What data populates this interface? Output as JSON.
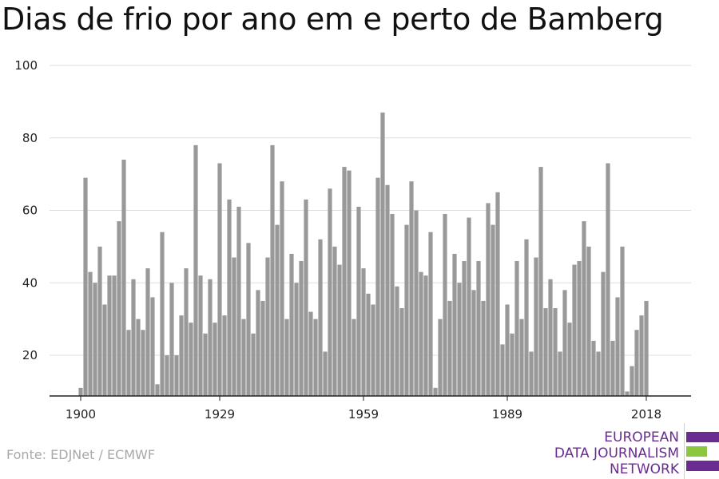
{
  "title": "Dias de frio por ano em e perto de Bamberg",
  "source": "Fonte: EDJNet / ECMWF",
  "logo": {
    "lines": [
      "EUROPEAN",
      "DATA JOURNALISM",
      "NETWORK"
    ],
    "colors": {
      "purple": "#6a2c91",
      "green": "#8dc63f"
    }
  },
  "colors": {
    "bar": "#999999",
    "grid": "#dddddd",
    "axis": "#222222"
  },
  "chart_data": {
    "type": "bar",
    "x_start": 1900,
    "x_end": 2018,
    "xticks": [
      1900,
      1929,
      1959,
      1989,
      2018
    ],
    "yticks": [
      20,
      40,
      60,
      80,
      100
    ],
    "ylim": [
      8,
      100
    ],
    "grid": true,
    "values": [
      11,
      69,
      43,
      40,
      50,
      34,
      42,
      42,
      57,
      74,
      27,
      41,
      30,
      27,
      44,
      36,
      12,
      54,
      20,
      40,
      20,
      31,
      44,
      29,
      78,
      42,
      26,
      41,
      29,
      73,
      31,
      63,
      47,
      61,
      30,
      51,
      26,
      38,
      35,
      47,
      78,
      56,
      68,
      30,
      48,
      40,
      46,
      63,
      32,
      30,
      52,
      21,
      66,
      50,
      45,
      72,
      71,
      30,
      61,
      44,
      37,
      34,
      69,
      87,
      67,
      59,
      39,
      33,
      56,
      68,
      60,
      43,
      42,
      54,
      11,
      30,
      59,
      35,
      48,
      40,
      46,
      58,
      38,
      46,
      35,
      62,
      56,
      65,
      23,
      34,
      26,
      46,
      30,
      52,
      21,
      47,
      72,
      33,
      41,
      33,
      21,
      38,
      29,
      45,
      46,
      57,
      50,
      24,
      21,
      43,
      73,
      24,
      36,
      50,
      10,
      17,
      27,
      31,
      35
    ]
  }
}
